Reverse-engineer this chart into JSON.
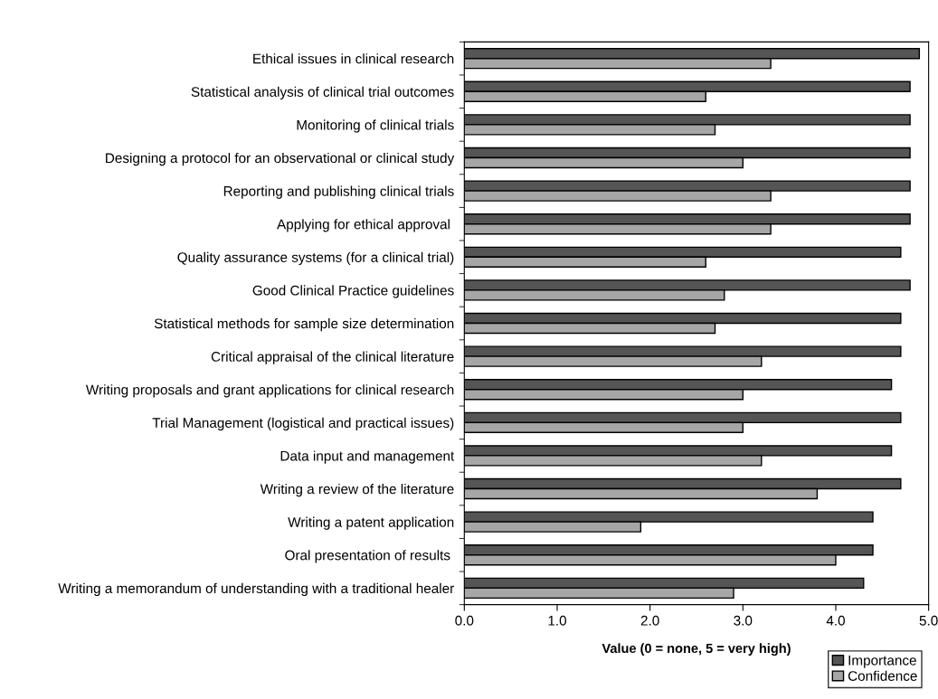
{
  "chart_data": {
    "type": "bar",
    "orientation": "horizontal",
    "xlabel": "Value (0 = none, 5 = very high)",
    "categories": [
      "Ethical issues in clinical research",
      "Statistical analysis of clinical trial outcomes",
      "Monitoring of clinical trials",
      "Designing a protocol for an observational or clinical study",
      "Reporting and publishing clinical trials",
      "Applying for ethical approval ",
      "Quality assurance systems (for a clinical trial)",
      "Good Clinical Practice guidelines",
      "Statistical methods for sample size determination",
      "Critical appraisal of the clinical literature",
      "Writing proposals and grant applications for clinical research",
      "Trial Management (logistical and practical issues)",
      "Data input and management",
      "Writing a review of the literature",
      "Writing a patent application",
      "Oral presentation of results ",
      "Writing a memorandum of understanding with a traditional healer"
    ],
    "series": [
      {
        "name": "Importance",
        "color": "#555555",
        "values": [
          4.9,
          4.8,
          4.8,
          4.8,
          4.8,
          4.8,
          4.7,
          4.8,
          4.7,
          4.7,
          4.6,
          4.7,
          4.6,
          4.7,
          4.4,
          4.4,
          4.3
        ]
      },
      {
        "name": "Confidence",
        "color": "#a6a6a6",
        "values": [
          3.3,
          2.6,
          2.7,
          3.0,
          3.3,
          3.3,
          2.6,
          2.8,
          2.7,
          3.2,
          3.0,
          3.0,
          3.2,
          3.8,
          1.9,
          4.0,
          2.9
        ]
      }
    ],
    "xlim": [
      0,
      5
    ],
    "xticks": [
      {
        "value": 0,
        "label": "0.0"
      },
      {
        "value": 1,
        "label": "1.0"
      },
      {
        "value": 2,
        "label": "2.0"
      },
      {
        "value": 3,
        "label": "3.0"
      },
      {
        "value": 4,
        "label": "4.0"
      },
      {
        "value": 5,
        "label": "5.0"
      }
    ],
    "grid": false,
    "legend": "bottom right"
  }
}
